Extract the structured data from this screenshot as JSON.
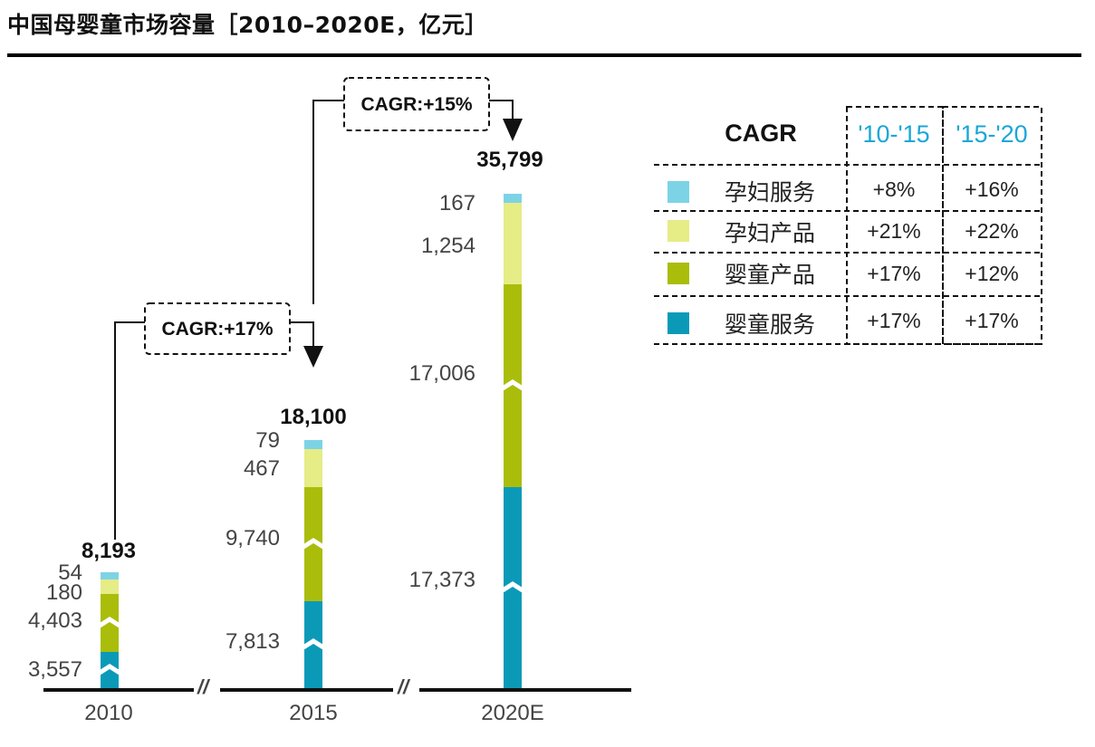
{
  "title": "中国母婴童市场容量［2010–2020E，亿元］",
  "colors": {
    "baby_services": "#0a9ab8",
    "baby_products": "#aabd0a",
    "maternal_products": "#e6ec86",
    "maternal_services": "#7dd3e6"
  },
  "chart_data": {
    "type": "bar",
    "stacked": true,
    "categories": [
      "2010",
      "2015",
      "2020E"
    ],
    "totals": [
      "8,193",
      "18,100",
      "35,799"
    ],
    "series": [
      {
        "name": "婴童服务",
        "values": [
          3557,
          7813,
          17373
        ],
        "labels": [
          "3,557",
          "7,813",
          "17,373"
        ]
      },
      {
        "name": "婴童产品",
        "values": [
          4403,
          9740,
          17006
        ],
        "labels": [
          "4,403",
          "9,740",
          "17,006"
        ]
      },
      {
        "name": "孕妇产品",
        "values": [
          180,
          467,
          1254
        ],
        "labels": [
          "180",
          "467",
          "1,254"
        ]
      },
      {
        "name": "孕妇服务",
        "values": [
          54,
          79,
          167
        ],
        "labels": [
          "54",
          "79",
          "167"
        ]
      }
    ],
    "axis_breaks": [
      "//",
      "//"
    ],
    "cagr_annotations": [
      {
        "label": "CAGR:+17%",
        "from": "2010",
        "to": "2015"
      },
      {
        "label": "CAGR:+15%",
        "from": "2015",
        "to": "2020E"
      }
    ]
  },
  "legend": {
    "header": "CAGR",
    "periods": [
      "'10-'15",
      "'15-'20"
    ],
    "rows": [
      {
        "name": "孕妇服务",
        "color": "#7dd3e6",
        "cagr": [
          "+8%",
          "+16%"
        ]
      },
      {
        "name": "孕妇产品",
        "color": "#e6ec86",
        "cagr": [
          "+21%",
          "+22%"
        ]
      },
      {
        "name": "婴童产品",
        "color": "#aabd0a",
        "cagr": [
          "+17%",
          "+12%"
        ]
      },
      {
        "name": "婴童服务",
        "color": "#0a9ab8",
        "cagr": [
          "+17%",
          "+17%"
        ]
      }
    ]
  }
}
